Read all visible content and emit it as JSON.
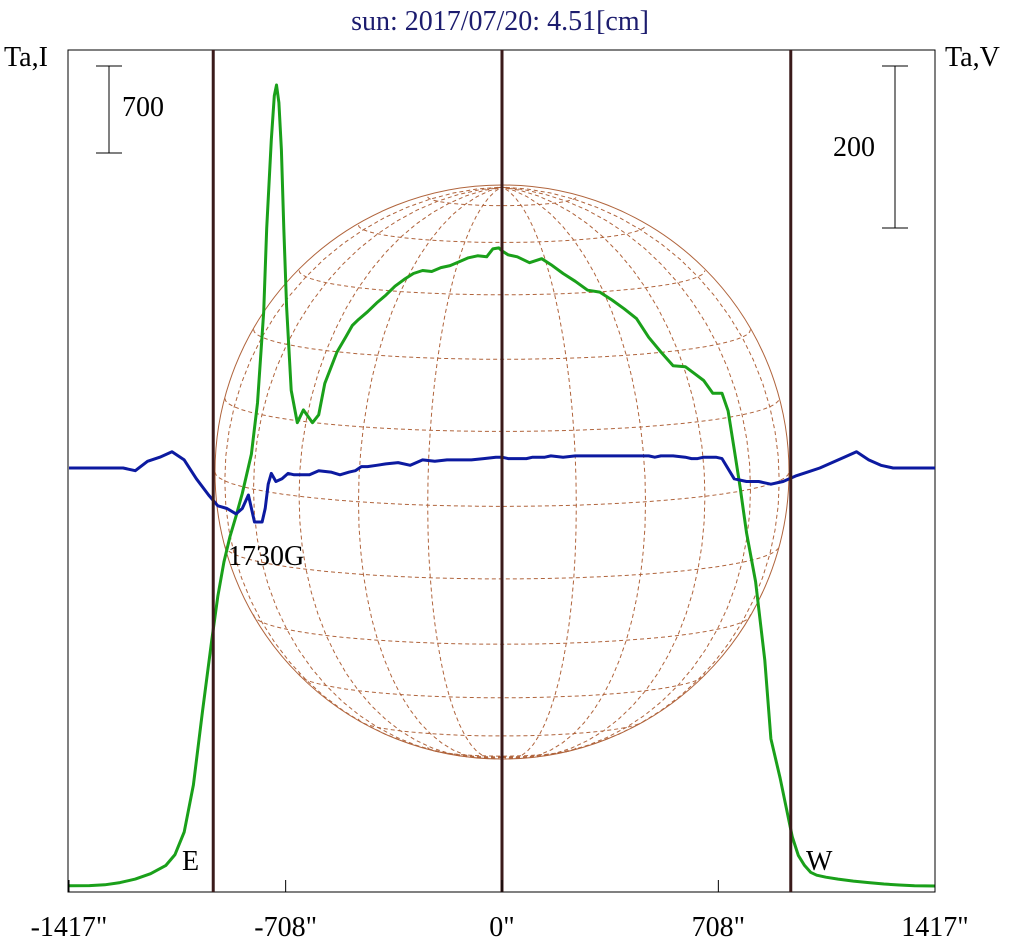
{
  "chart_data": {
    "type": "line",
    "title": "sun: 2017/07/20: 4.51[cm]",
    "title_color": "#1c1c6e",
    "left_axis_label": "Ta,I",
    "right_axis_label": "Ta,V",
    "scale_bar_left": "700",
    "scale_bar_right": "200",
    "x_tick_labels": [
      "-1417\"",
      "-708\"",
      "0\"",
      "708\"",
      "1417\""
    ],
    "x_ticks": [
      -1417,
      -708,
      0,
      708,
      1417
    ],
    "xlim": [
      -1417,
      1417
    ],
    "limb_markers": [
      {
        "label": "E",
        "x": -945
      },
      {
        "label": "W",
        "x": 945
      }
    ],
    "center_marker_x": 0,
    "annotations": [
      {
        "text": "1730G",
        "x": -760
      }
    ],
    "colors": {
      "stokes_i": "#1aa01a",
      "stokes_v": "#0c1aa0",
      "markers": "#3a1a1a",
      "solar_disk": "#b0643c"
    },
    "series": [
      {
        "name_hidden": "I",
        "color": "#1aa01a",
        "x": [
          -1417,
          -1350,
          -1300,
          -1250,
          -1200,
          -1150,
          -1100,
          -1070,
          -1040,
          -1010,
          -980,
          -950,
          -930,
          -910,
          -890,
          -870,
          -850,
          -820,
          -800,
          -780,
          -770,
          -755,
          -745,
          -738,
          -730,
          -722,
          -714,
          -705,
          -690,
          -670,
          -650,
          -620,
          -600,
          -580,
          -560,
          -540,
          -510,
          -490,
          -470,
          -440,
          -410,
          -380,
          -350,
          -320,
          -290,
          -260,
          -230,
          -200,
          -170,
          -140,
          -110,
          -80,
          -50,
          -30,
          -10,
          0,
          20,
          50,
          90,
          130,
          160,
          200,
          240,
          280,
          320,
          360,
          400,
          440,
          480,
          520,
          560,
          600,
          630,
          660,
          690,
          720,
          740,
          760,
          780,
          800,
          830,
          860,
          880,
          910,
          930,
          950,
          970,
          990,
          1010,
          1030,
          1060,
          1100,
          1150,
          1200,
          1250,
          1300,
          1350,
          1417
        ],
        "values": [
          2,
          4,
          12,
          35,
          70,
          125,
          210,
          320,
          550,
          1030,
          1780,
          2500,
          2950,
          3300,
          3560,
          3770,
          4000,
          4400,
          4920,
          5850,
          6700,
          7600,
          8050,
          8160,
          7980,
          7500,
          6700,
          5900,
          5050,
          4720,
          4850,
          4720,
          4800,
          5120,
          5280,
          5440,
          5600,
          5710,
          5770,
          5850,
          5940,
          6020,
          6110,
          6180,
          6240,
          6270,
          6260,
          6300,
          6320,
          6360,
          6400,
          6420,
          6410,
          6490,
          6500,
          6470,
          6430,
          6410,
          6350,
          6390,
          6330,
          6240,
          6160,
          6070,
          6050,
          5970,
          5880,
          5780,
          5590,
          5440,
          5300,
          5290,
          5220,
          5150,
          5020,
          5020,
          4840,
          4450,
          4050,
          3600,
          3100,
          2300,
          1500,
          1100,
          800,
          500,
          310,
          210,
          140,
          110,
          90,
          70,
          50,
          35,
          20,
          10,
          2,
          0
        ]
      },
      {
        "name_hidden": "V",
        "color": "#0c1aa0",
        "x": [
          -1417,
          -1300,
          -1240,
          -1200,
          -1160,
          -1120,
          -1080,
          -1040,
          -1000,
          -960,
          -930,
          -900,
          -870,
          -850,
          -830,
          -810,
          -795,
          -785,
          -775,
          -765,
          -755,
          -740,
          -720,
          -700,
          -680,
          -660,
          -630,
          -600,
          -560,
          -530,
          -500,
          -480,
          -460,
          -440,
          -410,
          -380,
          -340,
          -300,
          -260,
          -220,
          -180,
          -140,
          -100,
          -60,
          -20,
          0,
          20,
          40,
          60,
          80,
          100,
          120,
          140,
          160,
          200,
          240,
          280,
          320,
          360,
          400,
          440,
          480,
          500,
          520,
          560,
          600,
          620,
          640,
          660,
          680,
          700,
          720,
          760,
          800,
          840,
          880,
          920,
          960,
          1000,
          1040,
          1080,
          1120,
          1160,
          1200,
          1240,
          1280,
          1320,
          1360,
          1417
        ],
        "values": [
          0,
          0,
          0,
          -2,
          5,
          8,
          12,
          6,
          -8,
          -20,
          -28,
          -30,
          -34,
          -30,
          -20,
          -40,
          -40,
          -40,
          -30,
          -12,
          -4,
          -10,
          -8,
          -4,
          -5,
          -5,
          -5,
          -2,
          -3,
          -5,
          -3,
          -2,
          1,
          1,
          2,
          3,
          4,
          2,
          6,
          5,
          6,
          6,
          6,
          7,
          8,
          8,
          7,
          7,
          7,
          7,
          8,
          8,
          8,
          9,
          8,
          9,
          9,
          9,
          9,
          9,
          9,
          9,
          8,
          9,
          9,
          8,
          7,
          7,
          8,
          8,
          8,
          7,
          -8,
          -10,
          -10,
          -12,
          -10,
          -6,
          -3,
          0,
          4,
          8,
          12,
          6,
          2,
          0,
          0,
          0,
          0
        ]
      }
    ]
  }
}
